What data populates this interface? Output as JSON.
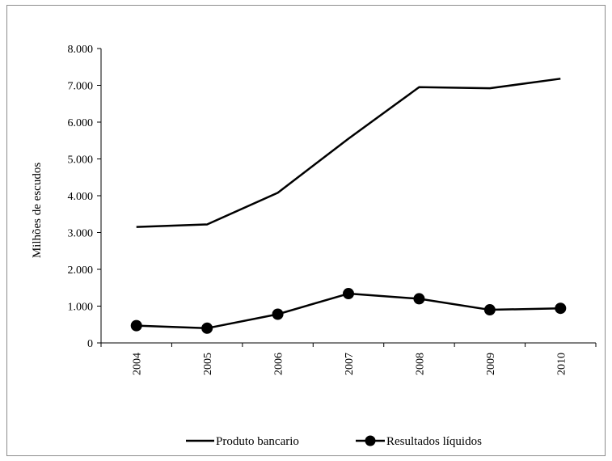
{
  "chart_data": {
    "type": "line",
    "categories": [
      "2004",
      "2005",
      "2006",
      "2007",
      "2008",
      "2009",
      "2010"
    ],
    "series": [
      {
        "name": "Produto bancario",
        "values": [
          3150,
          3220,
          4080,
          5550,
          6950,
          6920,
          7180
        ],
        "color": "#000000",
        "marker": "none"
      },
      {
        "name": "Resultados líquidos",
        "values": [
          470,
          400,
          780,
          1340,
          1200,
          900,
          940
        ],
        "color": "#000000",
        "marker": "circle"
      }
    ],
    "ylabel": "Milhões de escudos",
    "xlabel": "",
    "ylim": [
      0,
      8000
    ],
    "yticks": [
      "0",
      "1.000",
      "2.000",
      "3.000",
      "4.000",
      "5.000",
      "6.000",
      "7.000",
      "8.000"
    ],
    "grid": false,
    "legend_position": "bottom"
  }
}
